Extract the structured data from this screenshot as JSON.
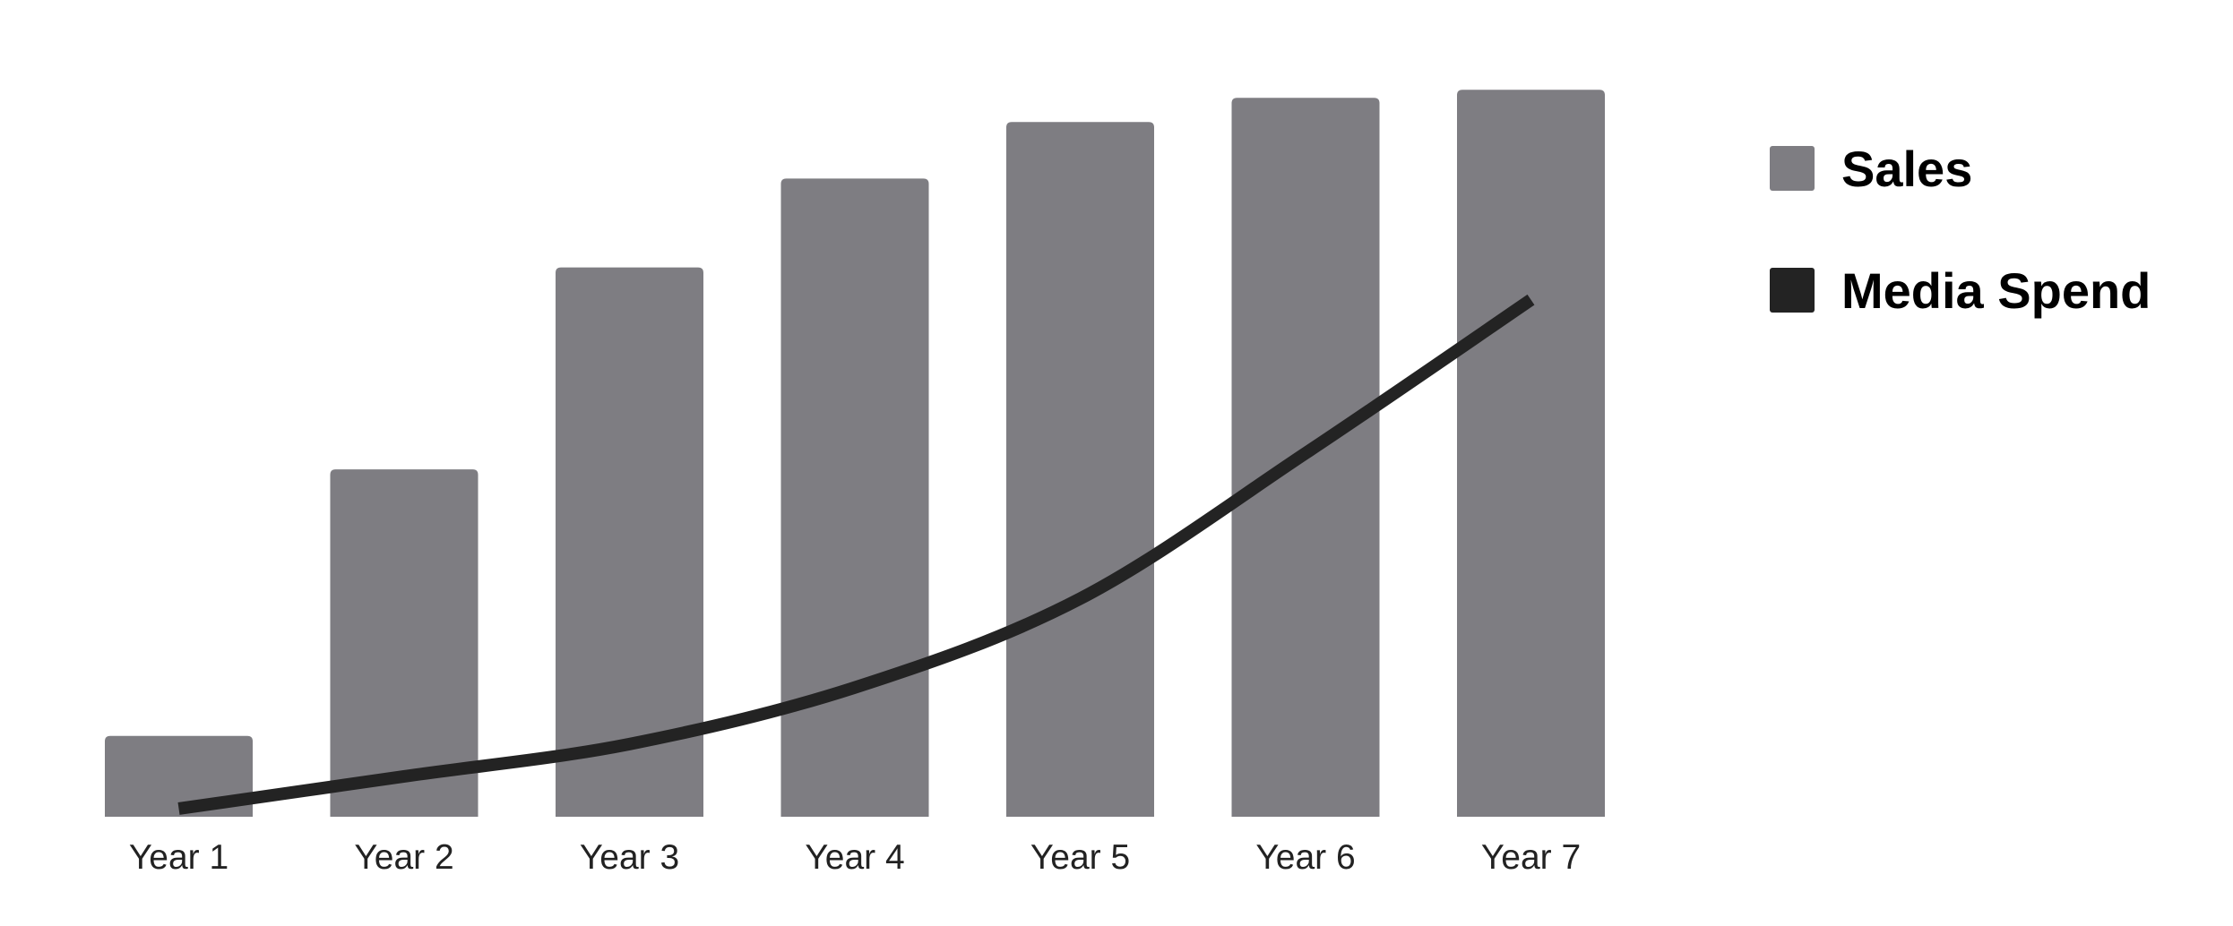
{
  "chart_data": {
    "type": "bar",
    "categories": [
      "Year 1",
      "Year 2",
      "Year 3",
      "Year 4",
      "Year 5",
      "Year 6",
      "Year 7"
    ],
    "series": [
      {
        "name": "Sales",
        "kind": "bar",
        "color": "#7e7d82",
        "values": [
          10,
          43,
          68,
          79,
          86,
          89,
          90
        ]
      },
      {
        "name": "Media Spend",
        "kind": "line",
        "color": "#232323",
        "values": [
          1,
          5,
          9,
          16,
          27,
          45,
          64
        ]
      }
    ],
    "ylim": [
      0,
      100
    ],
    "grid": false,
    "legend_position": "right",
    "xlabel": "",
    "ylabel": ""
  }
}
